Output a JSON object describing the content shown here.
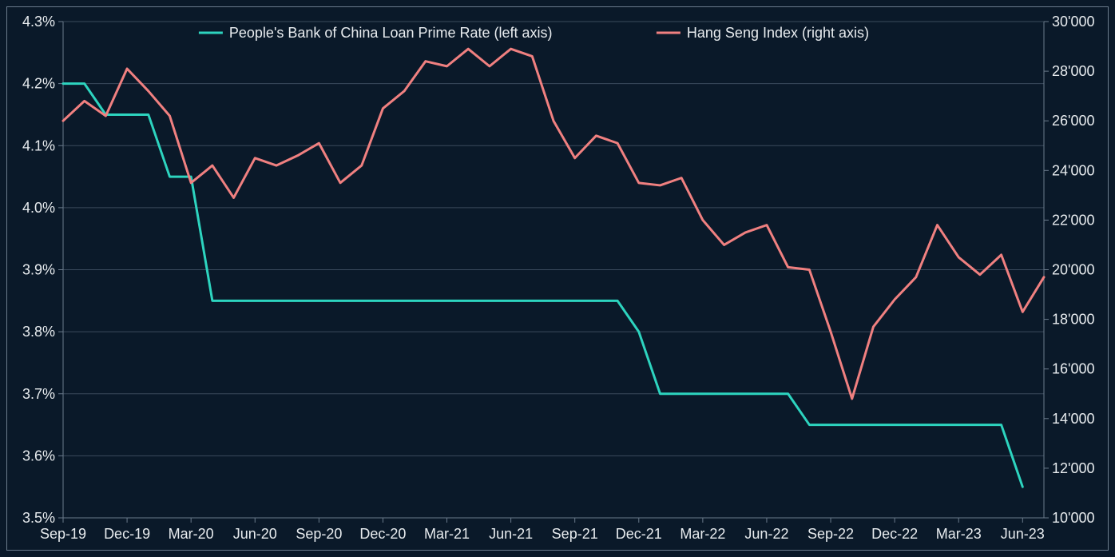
{
  "chart": {
    "type": "dual-axis-line",
    "background_color": "#0a1929",
    "border_color": "#6b7b8c",
    "text_color": "#e8ecef",
    "grid_color": "#3a4a5c",
    "axis_line_color": "#6b7b8c",
    "font_size_ticks": 18,
    "font_size_legend": 18,
    "line_width": 3,
    "legend": {
      "series1": {
        "label": "People's Bank of China Loan Prime Rate (left axis)",
        "color": "#2dd4bf",
        "swatch_width": 30
      },
      "series2": {
        "label": "Hang Seng Index (right axis)",
        "color": "#f08080",
        "swatch_width": 30
      }
    },
    "x": {
      "categories": [
        "Sep-19",
        "Oct-19",
        "Nov-19",
        "Dec-19",
        "Jan-20",
        "Feb-20",
        "Mar-20",
        "Apr-20",
        "May-20",
        "Jun-20",
        "Jul-20",
        "Aug-20",
        "Sep-20",
        "Oct-20",
        "Nov-20",
        "Dec-20",
        "Jan-21",
        "Feb-21",
        "Mar-21",
        "Apr-21",
        "May-21",
        "Jun-21",
        "Jul-21",
        "Aug-21",
        "Sep-21",
        "Oct-21",
        "Nov-21",
        "Dec-21",
        "Jan-22",
        "Feb-22",
        "Mar-22",
        "Apr-22",
        "May-22",
        "Jun-22",
        "Jul-22",
        "Aug-22",
        "Sep-22",
        "Oct-22",
        "Nov-22",
        "Dec-22",
        "Jan-23",
        "Feb-23",
        "Mar-23",
        "Apr-23",
        "May-23",
        "Jun-23"
      ],
      "tick_labels": [
        "Sep-19",
        "Dec-19",
        "Mar-20",
        "Jun-20",
        "Sep-20",
        "Dec-20",
        "Mar-21",
        "Jun-21",
        "Sep-21",
        "Dec-21",
        "Mar-22",
        "Jun-22",
        "Sep-22",
        "Dec-22",
        "Mar-23",
        "Jun-23"
      ],
      "tick_every": 3
    },
    "y_left": {
      "min": 3.5,
      "max": 4.3,
      "step": 0.1,
      "format": "percent1",
      "tick_labels": [
        "3.5%",
        "3.6%",
        "3.7%",
        "3.8%",
        "3.9%",
        "4.0%",
        "4.1%",
        "4.2%",
        "4.3%"
      ]
    },
    "y_right": {
      "min": 10000,
      "max": 30000,
      "step": 2000,
      "format": "apostrophe_thousands",
      "tick_labels": [
        "10'000",
        "12'000",
        "14'000",
        "16'000",
        "18'000",
        "20'000",
        "22'000",
        "24'000",
        "26'000",
        "28'000",
        "30'000"
      ]
    },
    "series1_values": [
      4.2,
      4.2,
      4.15,
      4.15,
      4.15,
      4.05,
      4.05,
      3.85,
      3.85,
      3.85,
      3.85,
      3.85,
      3.85,
      3.85,
      3.85,
      3.85,
      3.85,
      3.85,
      3.85,
      3.85,
      3.85,
      3.85,
      3.85,
      3.85,
      3.85,
      3.85,
      3.85,
      3.8,
      3.7,
      3.7,
      3.7,
      3.7,
      3.7,
      3.7,
      3.7,
      3.65,
      3.65,
      3.65,
      3.65,
      3.65,
      3.65,
      3.65,
      3.65,
      3.65,
      3.65,
      3.55
    ],
    "series2_values": [
      26000,
      26800,
      26200,
      28100,
      27200,
      26200,
      23500,
      24200,
      22900,
      24500,
      24200,
      24600,
      25100,
      23500,
      24200,
      26500,
      27200,
      28400,
      28200,
      28900,
      28200,
      28900,
      28600,
      26000,
      24500,
      25400,
      25100,
      23500,
      23400,
      23700,
      22000,
      21000,
      21500,
      21800,
      20100,
      20000,
      17500,
      14800,
      17700,
      18800,
      19700,
      21800,
      20500,
      19800,
      20600,
      18300
    ],
    "series2_extra_point": 19700
  }
}
